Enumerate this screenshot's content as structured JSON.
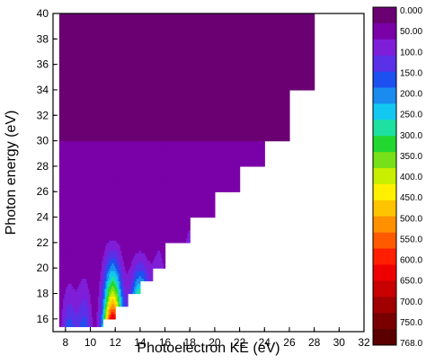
{
  "chart_data": {
    "type": "heatmap",
    "subtype": "filled-contour",
    "title": "",
    "xlabel": "Photoelectron KE (eV)",
    "ylabel": "Photon energy (eV)",
    "xlim": [
      7,
      32
    ],
    "ylim": [
      15,
      40
    ],
    "x_ticks": [
      "8",
      "10",
      "12",
      "14",
      "16",
      "18",
      "20",
      "22",
      "24",
      "26",
      "28",
      "30",
      "32"
    ],
    "y_ticks": [
      "16",
      "18",
      "20",
      "22",
      "24",
      "26",
      "28",
      "30",
      "32",
      "34",
      "36",
      "38",
      "40"
    ],
    "grid": false,
    "colorbar": {
      "position": "right",
      "levels": [
        "0.000",
        "50.00",
        "100.0",
        "150.0",
        "200.0",
        "250.0",
        "300.0",
        "350.0",
        "400.0",
        "450.0",
        "500.0",
        "550.0",
        "600.0",
        "650.0",
        "700.0",
        "750.0",
        "768.0"
      ],
      "min": 0,
      "max": 768,
      "colors": [
        "#6a0072",
        "#7a00a8",
        "#7f1ed8",
        "#5a30e8",
        "#1d50f0",
        "#1a8cf0",
        "#12c8f0",
        "#1ee0a0",
        "#22d830",
        "#78e018",
        "#c8ee00",
        "#fff000",
        "#ffc400",
        "#ff9000",
        "#ff5a00",
        "#ff1e00",
        "#ee0000",
        "#c80000",
        "#a00000",
        "#7a0000",
        "#5a0000"
      ]
    },
    "data_boundary": {
      "description": "staircase lower-right edge: no data where photoelectron KE exceeds the accessible limit for each photon energy",
      "steps": [
        {
          "photon_energy": 15.3,
          "ke_max": 11.0
        },
        {
          "photon_energy": 16.0,
          "ke_max": 12.0
        },
        {
          "photon_energy": 17.0,
          "ke_max": 13.0
        },
        {
          "photon_energy": 18.0,
          "ke_max": 14.0
        },
        {
          "photon_energy": 19.0,
          "ke_max": 15.0
        },
        {
          "photon_energy": 20.0,
          "ke_max": 16.0
        },
        {
          "photon_energy": 22.0,
          "ke_max": 18.0
        },
        {
          "photon_energy": 24.0,
          "ke_max": 20.0
        },
        {
          "photon_energy": 26.0,
          "ke_max": 22.0
        },
        {
          "photon_energy": 28.0,
          "ke_max": 24.0
        },
        {
          "photon_energy": 30.0,
          "ke_max": 26.0
        },
        {
          "photon_energy": 34.0,
          "ke_max": 28.0
        },
        {
          "photon_energy": 38.0,
          "ke_max": 28.0
        },
        {
          "photon_energy": 40.0,
          "ke_max": 30.0
        }
      ],
      "left_edge_ke": 7.5
    },
    "features": [
      {
        "ke_center": 8.3,
        "peak_value": 150,
        "photon_range": [
          15,
          22
        ]
      },
      {
        "ke_center": 9.5,
        "peak_value": 150,
        "photon_range": [
          15,
          23
        ]
      },
      {
        "ke_center": 11.8,
        "peak_value": 768,
        "photon_range": [
          15,
          24
        ]
      },
      {
        "ke_center": 14.0,
        "peak_value": 500,
        "photon_range": [
          16,
          23
        ]
      },
      {
        "ke_center": 15.5,
        "peak_value": 100,
        "photon_range": [
          18,
          26
        ]
      },
      {
        "ke_center": 18.0,
        "peak_value": 50,
        "photon_range": [
          22,
          30
        ]
      }
    ]
  }
}
